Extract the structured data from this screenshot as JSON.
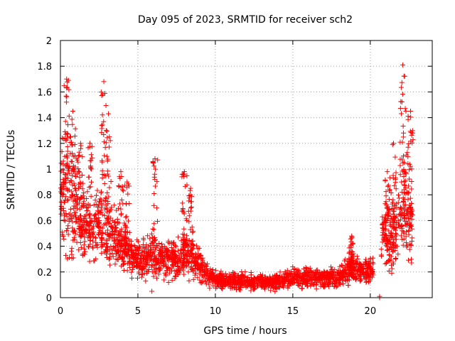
{
  "chart_data": {
    "type": "scatter",
    "title": "Day 095 of 2023, SRMTID for receiver sch2",
    "xlabel": "GPS time / hours",
    "ylabel": "SRMTID / TECUs",
    "xlim": [
      0,
      24
    ],
    "ylim": [
      0,
      2
    ],
    "x_ticks": [
      0,
      5,
      10,
      15,
      20
    ],
    "x_tick_labels": [
      "0",
      "5",
      "10",
      "15",
      "20"
    ],
    "y_ticks": [
      0,
      0.2,
      0.4,
      0.6,
      0.8,
      1,
      1.2,
      1.4,
      1.6,
      1.8,
      2
    ],
    "y_tick_labels": [
      "0",
      "0.2",
      "0.4",
      "0.6",
      "0.8",
      "1",
      "1.2",
      "1.4",
      "1.6",
      "1.8",
      "2"
    ],
    "grid": true,
    "marker": "+",
    "color": "#ff0000",
    "trend": [
      [
        0.0,
        0.8
      ],
      [
        0.3,
        0.95
      ],
      [
        0.7,
        0.9
      ],
      [
        1.0,
        0.75
      ],
      [
        1.4,
        0.6
      ],
      [
        2.0,
        0.55
      ],
      [
        2.6,
        0.6
      ],
      [
        3.0,
        0.55
      ],
      [
        3.5,
        0.45
      ],
      [
        4.0,
        0.4
      ],
      [
        4.5,
        0.33
      ],
      [
        5.0,
        0.3
      ],
      [
        5.5,
        0.3
      ],
      [
        6.0,
        0.35
      ],
      [
        6.5,
        0.3
      ],
      [
        7.0,
        0.3
      ],
      [
        7.5,
        0.3
      ],
      [
        8.0,
        0.35
      ],
      [
        8.5,
        0.32
      ],
      [
        9.0,
        0.25
      ],
      [
        9.5,
        0.18
      ],
      [
        10.0,
        0.14
      ],
      [
        11.0,
        0.13
      ],
      [
        12.0,
        0.13
      ],
      [
        13.0,
        0.12
      ],
      [
        14.0,
        0.12
      ],
      [
        15.0,
        0.15
      ],
      [
        16.0,
        0.16
      ],
      [
        17.0,
        0.15
      ],
      [
        18.0,
        0.16
      ],
      [
        18.8,
        0.25
      ],
      [
        19.5,
        0.2
      ],
      [
        20.2,
        0.22
      ]
    ],
    "trend_gap_end": [
      [
        20.7,
        0.45
      ],
      [
        21.0,
        0.55
      ],
      [
        21.5,
        0.5
      ],
      [
        21.9,
        0.6
      ],
      [
        22.3,
        0.7
      ],
      [
        22.7,
        0.6
      ]
    ],
    "spikes": [
      {
        "x": 0.4,
        "ymin": 0.3,
        "ymax": 1.7
      },
      {
        "x": 0.8,
        "ymin": 0.3,
        "ymax": 1.45
      },
      {
        "x": 1.3,
        "ymin": 0.3,
        "ymax": 1.2
      },
      {
        "x": 1.9,
        "ymin": 0.35,
        "ymax": 1.2
      },
      {
        "x": 2.8,
        "ymin": 0.3,
        "ymax": 1.68
      },
      {
        "x": 3.1,
        "ymin": 0.3,
        "ymax": 1.43
      },
      {
        "x": 3.9,
        "ymin": 0.25,
        "ymax": 0.98
      },
      {
        "x": 4.3,
        "ymin": 0.2,
        "ymax": 0.9
      },
      {
        "x": 6.1,
        "ymin": 0.15,
        "ymax": 1.08
      },
      {
        "x": 8.0,
        "ymin": 0.2,
        "ymax": 0.98
      },
      {
        "x": 8.4,
        "ymin": 0.2,
        "ymax": 0.85
      },
      {
        "x": 18.8,
        "ymin": 0.15,
        "ymax": 0.48
      },
      {
        "x": 21.1,
        "ymin": 0.2,
        "ymax": 0.98
      },
      {
        "x": 21.5,
        "ymin": 0.3,
        "ymax": 1.2
      },
      {
        "x": 22.1,
        "ymin": 0.4,
        "ymax": 1.81
      },
      {
        "x": 22.3,
        "ymin": 0.3,
        "ymax": 1.45
      },
      {
        "x": 22.6,
        "ymin": 0.25,
        "ymax": 1.45
      }
    ],
    "outliers": [
      [
        5.9,
        0.05
      ],
      [
        20.6,
        0.0
      ],
      [
        20.6,
        0.01
      ]
    ]
  }
}
